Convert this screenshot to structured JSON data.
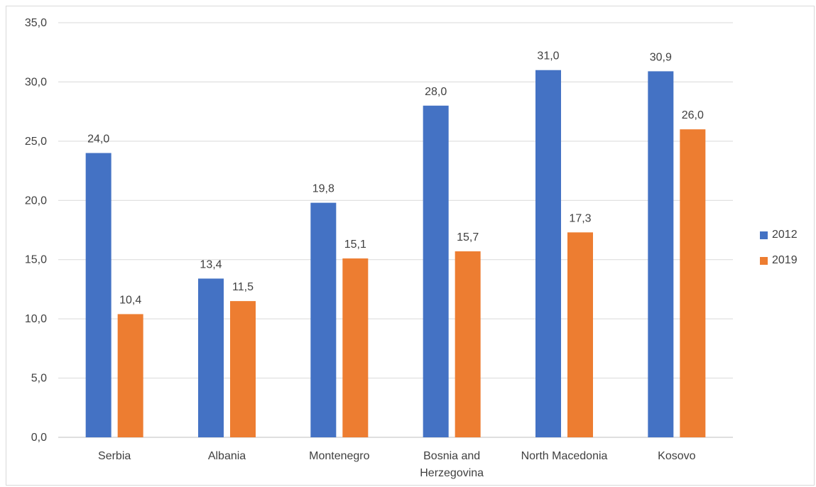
{
  "chart_data": {
    "type": "bar",
    "title": "",
    "xlabel": "",
    "ylabel": "",
    "ylim": [
      0,
      35
    ],
    "yticks": [
      "0,0",
      "5,0",
      "10,0",
      "15,0",
      "20,0",
      "25,0",
      "30,0",
      "35,0"
    ],
    "grid": true,
    "legend_position": "right",
    "categories": [
      "Serbia",
      "Albania",
      "Montenegro",
      "Bosnia and Herzegovina",
      "North Macedonia",
      "Kosovo"
    ],
    "series": [
      {
        "name": "2012",
        "color": "#4472C4",
        "values": [
          24.0,
          13.4,
          19.8,
          28.0,
          31.0,
          30.9
        ],
        "labels": [
          "24,0",
          "13,4",
          "19,8",
          "28,0",
          "31,0",
          "30,9"
        ]
      },
      {
        "name": "2019",
        "color": "#ED7D31",
        "values": [
          10.4,
          11.5,
          15.1,
          15.7,
          17.3,
          26.0
        ],
        "labels": [
          "10,4",
          "11,5",
          "15,1",
          "15,7",
          "17,3",
          "26,0"
        ]
      }
    ]
  }
}
